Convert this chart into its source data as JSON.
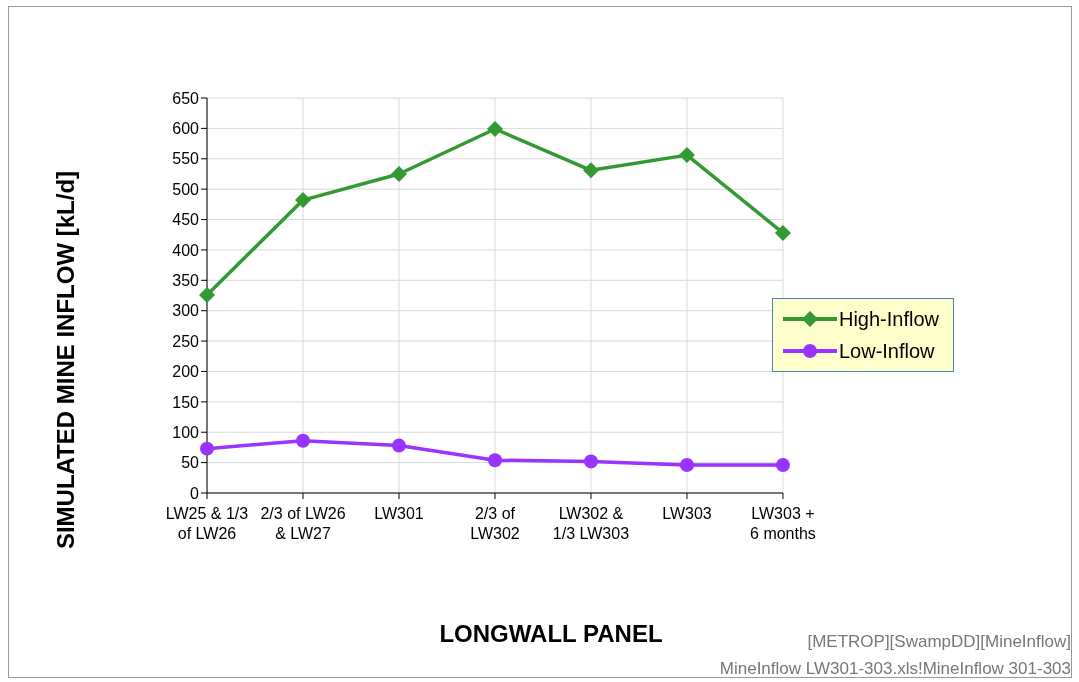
{
  "chart_data": {
    "type": "line",
    "xlabel": "LONGWALL PANEL",
    "ylabel": "SIMULATED MINE INFLOW [kL/d]",
    "categories": [
      "LW25 & 1/3\nof LW26",
      "2/3 of LW26\n& LW27",
      "LW301",
      "2/3 of\nLW302",
      "LW302 &\n1/3 LW303",
      "LW303",
      "LW303 +\n6 months"
    ],
    "series": [
      {
        "name": "High-Inflow",
        "color": "#339933",
        "marker": "diamond",
        "values": [
          326,
          482,
          525,
          599,
          531,
          556,
          428
        ]
      },
      {
        "name": "Low-Inflow",
        "color": "#9933ff",
        "marker": "circle",
        "values": [
          73,
          86,
          78,
          54,
          52,
          46,
          46
        ]
      }
    ],
    "ylim": [
      0,
      650
    ],
    "yticks": [
      0,
      50,
      100,
      150,
      200,
      250,
      300,
      350,
      400,
      450,
      500,
      550,
      600,
      650
    ],
    "grid": true,
    "legend": "right",
    "annotations": [
      "[METROP][SwampDD][MineInflow]",
      "MineInflow LW301-303.xls!MineInflow 301-303"
    ]
  }
}
